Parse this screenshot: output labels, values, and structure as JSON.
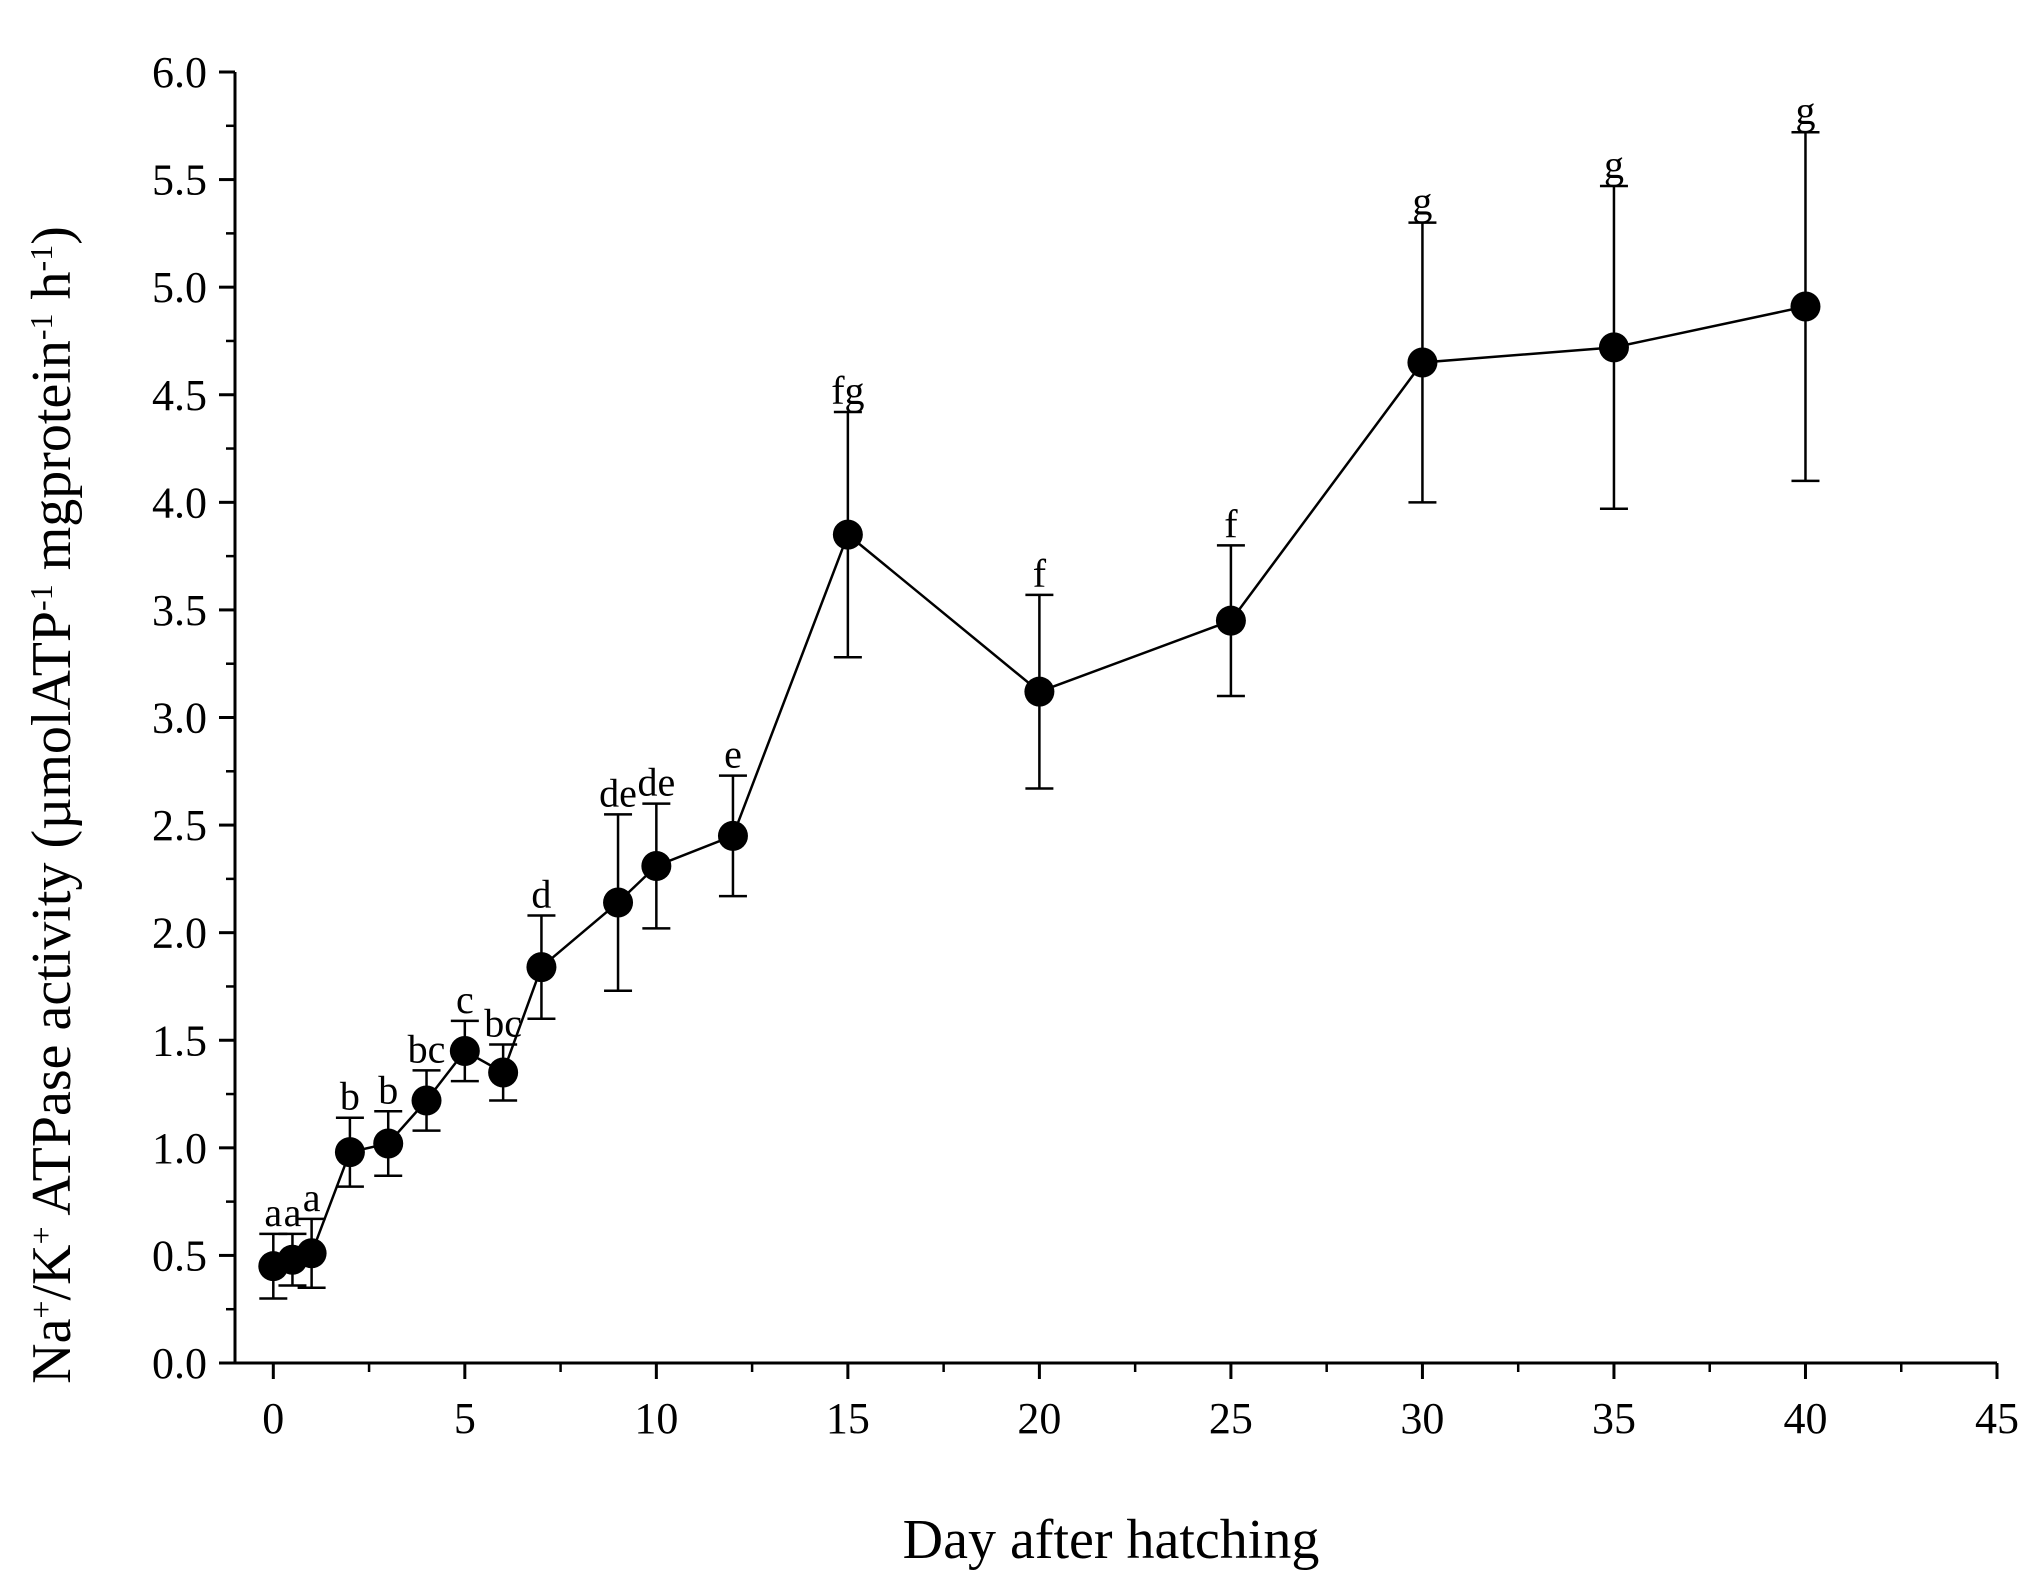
{
  "chart_data": {
    "type": "line",
    "title": "",
    "xlabel": "Day after hatching",
    "ylabel_parts": {
      "na": "Na",
      "plus1": "+",
      "slash": "/K",
      "plus2": "+",
      "main": " ATPase activity (µmolATP",
      "neg1a": "-1",
      "mid": " mgprotein",
      "neg1b": "-1",
      "h": " h",
      "neg1c": "-1",
      "end": ")"
    },
    "xlim": [
      -1,
      45
    ],
    "ylim": [
      0,
      6
    ],
    "x_ticks": [
      0,
      5,
      10,
      15,
      20,
      25,
      30,
      35,
      40,
      45
    ],
    "x_minor_ticks": [
      2.5,
      7.5,
      12.5,
      17.5,
      22.5,
      27.5,
      32.5,
      37.5,
      42.5
    ],
    "y_ticks": [
      0.0,
      0.5,
      1.0,
      1.5,
      2.0,
      2.5,
      3.0,
      3.5,
      4.0,
      4.5,
      5.0,
      5.5,
      6.0
    ],
    "y_tick_labels": [
      "0.0",
      "0.5",
      "1.0",
      "1.5",
      "2.0",
      "2.5",
      "3.0",
      "3.5",
      "4.0",
      "4.5",
      "5.0",
      "5.5",
      "6.0"
    ],
    "grid": false,
    "series": [
      {
        "name": "Na+/K+ ATPase activity",
        "points": [
          {
            "x": 0,
            "y": 0.45,
            "err": 0.15,
            "label": "a"
          },
          {
            "x": 0.5,
            "y": 0.48,
            "err": 0.12,
            "label": "a"
          },
          {
            "x": 1,
            "y": 0.51,
            "err": 0.16,
            "label": "a"
          },
          {
            "x": 2,
            "y": 0.98,
            "err": 0.16,
            "label": "b"
          },
          {
            "x": 3,
            "y": 1.02,
            "err": 0.15,
            "label": "b"
          },
          {
            "x": 4,
            "y": 1.22,
            "err": 0.14,
            "label": "bc"
          },
          {
            "x": 5,
            "y": 1.45,
            "err": 0.14,
            "label": "c"
          },
          {
            "x": 6,
            "y": 1.35,
            "err": 0.13,
            "label": "bc"
          },
          {
            "x": 7,
            "y": 1.84,
            "err": 0.24,
            "label": "d"
          },
          {
            "x": 9,
            "y": 2.14,
            "err": 0.41,
            "label": "de"
          },
          {
            "x": 10,
            "y": 2.31,
            "err": 0.29,
            "label": "de"
          },
          {
            "x": 12,
            "y": 2.45,
            "err": 0.28,
            "label": "e"
          },
          {
            "x": 15,
            "y": 3.85,
            "err": 0.57,
            "label": "fg"
          },
          {
            "x": 20,
            "y": 3.12,
            "err": 0.45,
            "label": "f"
          },
          {
            "x": 25,
            "y": 3.45,
            "err": 0.35,
            "label": "f"
          },
          {
            "x": 30,
            "y": 4.65,
            "err": 0.65,
            "label": "g"
          },
          {
            "x": 35,
            "y": 4.72,
            "err": 0.75,
            "label": "g"
          },
          {
            "x": 40,
            "y": 4.91,
            "err": 0.81,
            "label": "g"
          }
        ]
      }
    ]
  }
}
